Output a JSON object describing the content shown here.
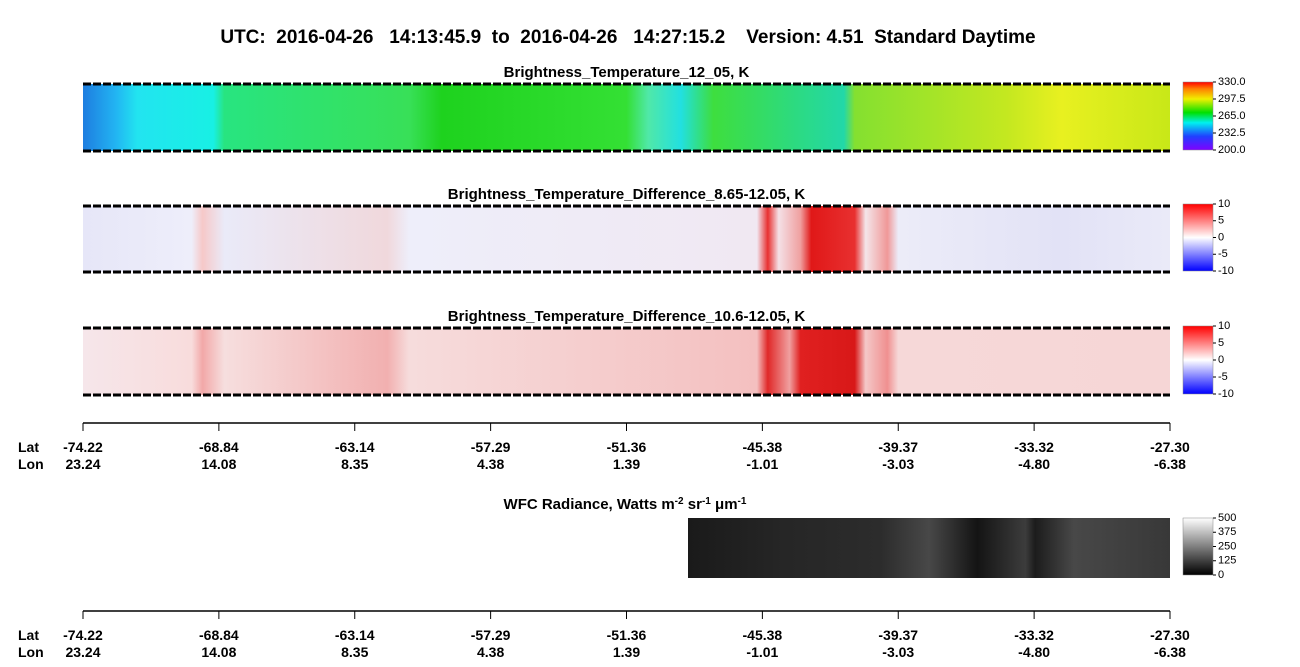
{
  "title": "UTC:  2016-04-26   14:13:45.9  to  2016-04-26   14:27:15.2    Version: 4.51  Standard Daytime",
  "panels": [
    {
      "title": "Brightness_Temperature_12_05, K",
      "colorbar_ticks": [
        "330.0",
        "297.5",
        "265.0",
        "232.5",
        "200.0"
      ]
    },
    {
      "title": "Brightness_Temperature_Difference_8.65-12.05, K",
      "colorbar_ticks": [
        "10",
        "5",
        "0",
        "-5",
        "-10"
      ]
    },
    {
      "title": "Brightness_Temperature_Difference_10.6-12.05, K",
      "colorbar_ticks": [
        "10",
        "5",
        "0",
        "-5",
        "-10"
      ]
    }
  ],
  "wfc": {
    "title_parts": [
      "WFC Radiance, Watts m",
      "-2",
      " sr",
      "-1",
      " ",
      "μ",
      "m",
      "-1"
    ],
    "colorbar_ticks": [
      "500",
      "375",
      "250",
      "125",
      "0"
    ]
  },
  "axes": [
    {
      "lat_label": "Lat",
      "lon_label": "Lon",
      "lat": [
        "-74.22",
        "-68.84",
        "-63.14",
        "-57.29",
        "-51.36",
        "-45.38",
        "-39.37",
        "-33.32",
        "-27.30"
      ],
      "lon": [
        "23.24",
        "14.08",
        "8.35",
        "4.38",
        "1.39",
        "-1.01",
        "-3.03",
        "-4.80",
        "-6.38"
      ]
    },
    {
      "lat_label": "Lat",
      "lon_label": "Lon",
      "lat": [
        "-74.22",
        "-68.84",
        "-63.14",
        "-57.29",
        "-51.36",
        "-45.38",
        "-39.37",
        "-33.32",
        "-27.30"
      ],
      "lon": [
        "23.24",
        "14.08",
        "8.35",
        "4.38",
        "1.39",
        "-1.01",
        "-3.03",
        "-4.80",
        "-6.38"
      ]
    }
  ]
}
